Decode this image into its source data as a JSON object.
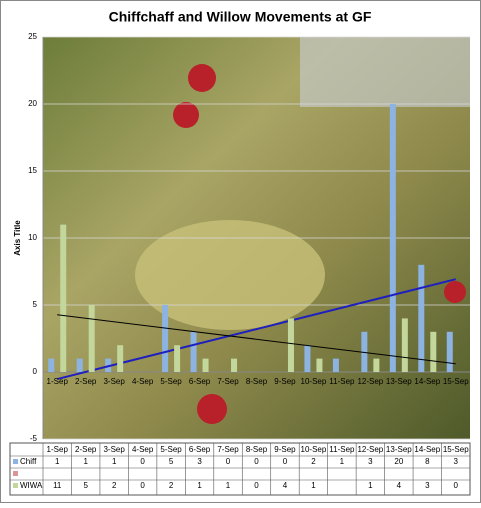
{
  "chart_data": {
    "type": "bar",
    "title": "Chiffchaff and Willow Movements  at GF",
    "y_label": "Axis Title",
    "categories": [
      "1-Sep",
      "2-Sep",
      "3-Sep",
      "4-Sep",
      "5-Sep",
      "6-Sep",
      "7-Sep",
      "8-Sep",
      "9-Sep",
      "10-Sep",
      "11-Sep",
      "12-Sep",
      "13-Sep",
      "14-Sep",
      "15-Sep"
    ],
    "series": [
      {
        "name": "Chiff",
        "color": "#8db3e2",
        "values": [
          1,
          1,
          1,
          0,
          5,
          3,
          0,
          0,
          0,
          2,
          1,
          3,
          20,
          8,
          3
        ],
        "trendline_color": "#1f1fbf"
      },
      {
        "name": "WIWA",
        "color": "#c3d69b",
        "values": [
          11,
          5,
          2,
          0,
          2,
          1,
          1,
          0,
          4,
          1,
          null,
          1,
          4,
          3,
          0
        ],
        "trendline_color": "#000000"
      }
    ],
    "ylim": [
      -5,
      25
    ],
    "yticks": [
      -5,
      0,
      5,
      10,
      15,
      20,
      25
    ],
    "grid": true
  }
}
